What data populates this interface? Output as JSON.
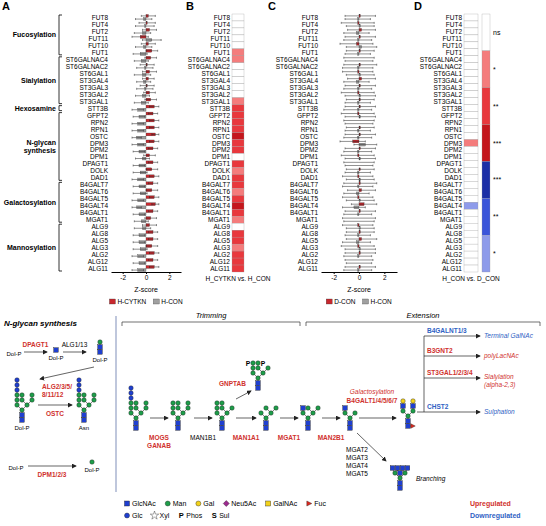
{
  "chart_data": [
    {
      "type": "bar",
      "orientation": "horizontal",
      "title": "A",
      "categories": [
        "FUT8",
        "FUT4",
        "FUT2",
        "FUT11",
        "FUT10",
        "FUT1",
        "ST6GALNAC4",
        "ST6GALNAC2",
        "ST6GAL1",
        "ST3GAL4",
        "ST3GAL3",
        "ST3GAL2",
        "ST3GAL1",
        "STT3B",
        "GFPT2",
        "RPN2",
        "RPN1",
        "OSTC",
        "DPM3",
        "DPM2",
        "DPM1",
        "DPAGT1",
        "DOLK",
        "DAD1",
        "B4GALT7",
        "B4GALT6",
        "B4GALT5",
        "B4GALT4",
        "B4GALT1",
        "MGAT1",
        "ALG9",
        "ALG8",
        "ALG5",
        "ALG3",
        "ALG2",
        "ALG12",
        "ALG11"
      ],
      "groups": [
        {
          "label": "Fucosylation",
          "start": 0,
          "end": 5
        },
        {
          "label": "Sialylation",
          "start": 6,
          "end": 12
        },
        {
          "label": "Hexosamine",
          "start": 13,
          "end": 13
        },
        {
          "label": "N-glycan synthesis",
          "start": 14,
          "end": 23
        },
        {
          "label": "Galactosylation",
          "start": 24,
          "end": 29
        },
        {
          "label": "Mannosylation",
          "start": 30,
          "end": 36
        }
      ],
      "series": [
        {
          "name": "H-CYTKN",
          "color": "#c8282e",
          "values": [
            0.2,
            0.1,
            0.3,
            -0.5,
            0.2,
            0.5,
            0.4,
            0.1,
            0.3,
            0.2,
            0.1,
            0.3,
            0.4,
            0.7,
            0.6,
            0.7,
            0.7,
            0.8,
            0.7,
            0.6,
            0.3,
            0.6,
            0.5,
            0.7,
            0.6,
            0.5,
            0.7,
            0.8,
            0.6,
            0.4,
            0.3,
            0.6,
            0.6,
            0.5,
            0.7,
            0.6,
            0.7
          ],
          "errors": [
            0.6,
            0.7,
            0.6,
            0.7,
            0.6,
            0.5,
            0.5,
            0.6,
            0.6,
            0.5,
            0.6,
            0.5,
            0.5,
            0.4,
            0.4,
            0.4,
            0.4,
            0.3,
            0.4,
            0.4,
            0.5,
            0.4,
            0.5,
            0.4,
            0.4,
            0.5,
            0.4,
            0.3,
            0.4,
            0.5,
            0.6,
            0.4,
            0.4,
            0.5,
            0.4,
            0.4,
            0.4
          ]
        },
        {
          "name": "H-CON",
          "color": "#a0a0a0",
          "values": [
            -0.2,
            -0.1,
            -0.3,
            0.5,
            -0.2,
            -0.5,
            -0.4,
            -0.1,
            -0.3,
            -0.2,
            -0.1,
            -0.3,
            -0.4,
            -0.7,
            -0.6,
            -0.7,
            -0.7,
            -0.8,
            -0.7,
            -0.6,
            -0.3,
            -0.6,
            -0.5,
            -0.7,
            -0.6,
            -0.5,
            -0.7,
            -0.8,
            -0.6,
            -0.4,
            -0.3,
            -0.6,
            -0.6,
            -0.5,
            -0.7,
            -0.6,
            -0.7
          ],
          "errors": [
            0.7,
            0.8,
            0.7,
            0.8,
            0.7,
            0.6,
            0.6,
            0.7,
            0.7,
            0.6,
            0.7,
            0.6,
            0.6,
            0.5,
            0.5,
            0.5,
            0.5,
            0.4,
            0.5,
            0.5,
            0.6,
            0.5,
            0.6,
            0.5,
            0.5,
            0.6,
            0.5,
            0.4,
            0.5,
            0.6,
            0.7,
            0.5,
            0.5,
            0.6,
            0.5,
            0.5,
            0.5
          ]
        }
      ],
      "xlabel": "Z-score",
      "xlim": [
        -3,
        3
      ],
      "xticks": [
        -2,
        0,
        2
      ],
      "legend": "bottom"
    },
    {
      "type": "heatmap",
      "title": "B",
      "categories": [
        "FUT8",
        "FUT4",
        "FUT2",
        "FUT11",
        "FUT10",
        "FUT1",
        "ST6GALNAC4",
        "ST6GALNAC2",
        "ST6GAL1",
        "ST3GAL4",
        "ST3GAL3",
        "ST3GAL2",
        "ST3GAL1",
        "STT3B",
        "GFPT2",
        "RPN2",
        "RPN1",
        "OSTC",
        "DPM3",
        "DPM2",
        "DPM1",
        "DPAGT1",
        "DOLK",
        "DAD1",
        "B4GALT7",
        "B4GALT6",
        "B4GALT5",
        "B4GALT4",
        "B4GALT1",
        "MGAT1",
        "ALG9",
        "ALG8",
        "ALG5",
        "ALG3",
        "ALG2",
        "ALG12",
        "ALG11"
      ],
      "values": [
        0,
        0,
        0,
        0,
        0,
        1,
        1,
        0,
        0,
        0,
        0,
        0,
        1,
        2,
        2,
        2,
        2,
        3,
        2,
        2,
        0,
        2,
        1,
        2,
        2,
        1,
        2,
        3,
        2,
        1,
        0,
        2,
        2,
        1,
        2,
        2,
        2
      ],
      "xlabel": "H_CYTKN vs. H_CON"
    },
    {
      "type": "bar",
      "orientation": "horizontal",
      "title": "C",
      "categories": [
        "FUT8",
        "FUT4",
        "FUT2",
        "FUT11",
        "FUT10",
        "FUT1",
        "ST6GALNAC4",
        "ST6GALNAC2",
        "ST6GAL1",
        "ST3GAL4",
        "ST3GAL3",
        "ST3GAL2",
        "ST3GAL1",
        "STT3B",
        "GFPT2",
        "RPN2",
        "RPN1",
        "OSTC",
        "DPM3",
        "DPM2",
        "DPM1",
        "DPAGT1",
        "DOLK",
        "DAD1",
        "B4GALT7",
        "B4GALT6",
        "B4GALT5",
        "B4GALT4",
        "B4GALT1",
        "MGAT1",
        "ALG9",
        "ALG8",
        "ALG5",
        "ALG3",
        "ALG2",
        "ALG12",
        "ALG11"
      ],
      "series": [
        {
          "name": "D-CON",
          "color": "#c8282e",
          "values": [
            0.1,
            -0.1,
            0.2,
            0.1,
            -0.2,
            0.1,
            0,
            0.1,
            -0.1,
            0.2,
            0.1,
            -0.1,
            0.1,
            0.1,
            -0.1,
            0,
            0.1,
            0.1,
            -0.5,
            0.1,
            -0.1,
            0,
            0.1,
            -0.1,
            0.1,
            0.2,
            -0.1,
            0.4,
            0.1,
            0,
            -0.1,
            0.1,
            0.2,
            -0.1,
            0.1,
            0,
            0.1
          ],
          "errors": [
            1.2,
            1.3,
            1.1,
            1.2,
            1.3,
            1.1,
            1.2,
            1.3,
            1.2,
            1.1,
            1.2,
            1.3,
            1.1,
            1.2,
            1.3,
            1.2,
            1.1,
            1.2,
            1.0,
            1.2,
            1.3,
            1.2,
            1.1,
            1.2,
            1.3,
            1.1,
            1.2,
            1.0,
            1.2,
            1.3,
            1.2,
            1.1,
            1.2,
            1.3,
            1.2,
            1.1,
            1.2
          ]
        },
        {
          "name": "H-CON",
          "color": "#a0a0a0",
          "values": [
            -0.1,
            0.1,
            -0.2,
            -0.1,
            0.2,
            -0.1,
            0,
            -0.1,
            0.1,
            -0.2,
            -0.1,
            0.1,
            -0.1,
            -0.1,
            0.1,
            0,
            -0.1,
            -0.1,
            0.5,
            -0.1,
            0.1,
            0,
            -0.1,
            0.1,
            -0.1,
            -0.2,
            0.1,
            -0.4,
            -0.1,
            0,
            0.1,
            -0.1,
            -0.2,
            0.1,
            -0.1,
            0,
            -0.1
          ],
          "errors": [
            1.0,
            1.1,
            1.0,
            1.1,
            1.2,
            1.0,
            1.1,
            1.2,
            1.1,
            1.0,
            1.1,
            1.2,
            1.0,
            1.1,
            1.2,
            1.1,
            1.0,
            1.1,
            0.9,
            1.1,
            1.2,
            1.1,
            1.0,
            1.1,
            1.2,
            1.0,
            1.1,
            0.9,
            1.1,
            1.2,
            1.1,
            1.0,
            1.1,
            1.2,
            1.1,
            1.0,
            1.1
          ]
        }
      ],
      "xlabel": "Z-score",
      "xlim": [
        -3,
        3
      ],
      "xticks": [
        -2,
        0,
        2
      ],
      "legend": "bottom"
    },
    {
      "type": "heatmap",
      "title": "D",
      "categories": [
        "FUT8",
        "FUT4",
        "FUT2",
        "FUT11",
        "FUT10",
        "FUT1",
        "ST6GALNAC4",
        "ST6GALNAC2",
        "ST6GAL1",
        "ST3GAL4",
        "ST3GAL3",
        "ST3GAL2",
        "ST3GAL1",
        "STT3B",
        "GFPT2",
        "RPN2",
        "RPN1",
        "OSTC",
        "DPM3",
        "DPM2",
        "DPM1",
        "DPAGT1",
        "DOLK",
        "DAD1",
        "B4GALT7",
        "B4GALT6",
        "B4GALT5",
        "B4GALT4",
        "B4GALT1",
        "MGAT1",
        "ALG9",
        "ALG8",
        "ALG5",
        "ALG3",
        "ALG2",
        "ALG12",
        "ALG11"
      ],
      "values": [
        0,
        0,
        0,
        0,
        0,
        0,
        0,
        0,
        0,
        0,
        0,
        0,
        0,
        0,
        0,
        0,
        0,
        0,
        1,
        0,
        0,
        0,
        0,
        0,
        0,
        0,
        0,
        -1,
        0,
        0,
        0,
        0,
        0,
        0,
        0,
        0,
        0
      ],
      "xlabel": "H_CON vs. D_CON",
      "color_scale": {
        "levels": [
          0,
          1,
          2,
          3,
          -3,
          -2,
          -1
        ],
        "labels": [
          "ns",
          "*",
          "**",
          "***",
          "***",
          "**",
          "*"
        ],
        "colors": [
          "#ffffff",
          "#f47c7c",
          "#e8383d",
          "#c4161c",
          "#1c2fa6",
          "#3b55d9",
          "#8e9bea"
        ]
      }
    }
  ],
  "diagram": {
    "synthesis": {
      "title": "N-glycan synthesis",
      "carrier": "Dol-P",
      "acceptor": "Asn",
      "enzymes": [
        {
          "lines": [
            "DPAGT1"
          ],
          "color": "#d0312d"
        },
        {
          "lines": [
            "ALG1/13"
          ],
          "color": "#000000"
        },
        {
          "lines": [
            "ALG2/3/5/",
            "8/11/12"
          ],
          "color": "#d0312d"
        },
        {
          "lines": [
            "OSTC"
          ],
          "color": "#d0312d"
        },
        {
          "lines": [
            "DPM1/2/3"
          ],
          "color": "#d0312d"
        }
      ]
    },
    "processing": {
      "stages": [
        "Trimming",
        "Extension"
      ],
      "enzymes": [
        {
          "lines": [
            "MOGS",
            "GANAB"
          ],
          "color": "#d0312d"
        },
        {
          "lines": [
            "MAN1B1"
          ],
          "color": "#000000"
        },
        {
          "lines": [
            "MAN1A1"
          ],
          "color": "#d0312d"
        },
        {
          "lines": [
            "MGAT1"
          ],
          "color": "#d0312d"
        },
        {
          "lines": [
            "MAN2B1"
          ],
          "color": "#d0312d"
        },
        {
          "lines": [
            "GNPTAB"
          ],
          "color": "#d0312d"
        },
        {
          "lines": [
            "B4GALT1/4/5/6/7"
          ],
          "color": "#d0312d"
        },
        {
          "lines": [
            "B4GALNT1/3"
          ],
          "color": "#2f62c4"
        },
        {
          "lines": [
            "B3GNT2"
          ],
          "color": "#d0312d"
        },
        {
          "lines": [
            "ST3GAL1/2/3/4"
          ],
          "color": "#d0312d"
        },
        {
          "lines": [
            "CHST2"
          ],
          "color": "#2f62c4"
        },
        {
          "lines": [
            "MGAT2",
            "MGAT3",
            "MGAT4",
            "MGAT5"
          ],
          "color": "#000000"
        }
      ],
      "outcomes": [
        {
          "lines": [
            "Galactosylation"
          ],
          "color": "#d0312d"
        },
        {
          "lines": [
            "Terminal GalNAc"
          ],
          "color": "#2f62c4"
        },
        {
          "lines": [
            "polyLacNAc"
          ],
          "color": "#d0312d"
        },
        {
          "lines": [
            "Sialylation",
            "(alpha-2,3)"
          ],
          "color": "#d0312d"
        },
        {
          "lines": [
            "Sulphation"
          ],
          "color": "#2f62c4"
        },
        {
          "lines": [
            "Branching"
          ],
          "color": "#000000"
        }
      ]
    },
    "key": {
      "regulation": [
        {
          "lines": [
            "Upregulated"
          ],
          "color": "#d0312d"
        },
        {
          "lines": [
            "Downregulated"
          ],
          "color": "#2f62c4"
        }
      ],
      "symbols": [
        {
          "name": "GlcNAc",
          "marker": "square",
          "color": "#1f3fd0"
        },
        {
          "name": "Man",
          "marker": "circle",
          "color": "#1e9e4a"
        },
        {
          "name": "Gal",
          "marker": "circle",
          "color": "#f2d21b"
        },
        {
          "name": "Neu5Ac",
          "marker": "diamond",
          "color": "#9c2a8e"
        },
        {
          "name": "GalNAc",
          "marker": "square",
          "color": "#f2d21b"
        },
        {
          "name": "Fuc",
          "marker": "triangle",
          "color": "#e0281e"
        },
        {
          "name": "Glc",
          "marker": "circle",
          "color": "#1f3fd0"
        },
        {
          "name": "Xyl",
          "marker": "star",
          "color": "#ffffff"
        },
        {
          "name": "Phos",
          "marker": "letter",
          "symbol": "P",
          "color": "#000000"
        },
        {
          "name": "Sul",
          "marker": "letter",
          "symbol": "S",
          "color": "#000000"
        }
      ]
    }
  }
}
